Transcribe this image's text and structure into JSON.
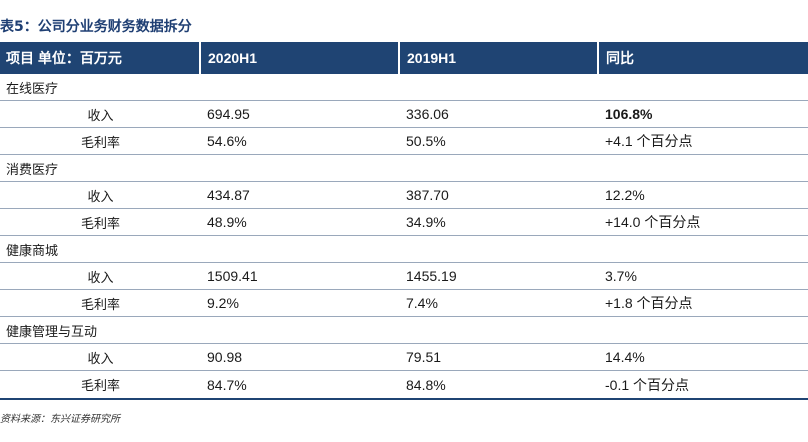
{
  "title": "表5：公司分业务财务数据拆分",
  "header": {
    "col0": "项目 单位：百万元",
    "col1": "2020H1",
    "col2": "2019H1",
    "col3": "同比"
  },
  "groups": [
    {
      "name": "在线医疗",
      "rows": [
        {
          "label": "收入",
          "v2020": "694.95",
          "v2019": "336.06",
          "yoy": "106.8%"
        },
        {
          "label": "毛利率",
          "v2020": "54.6%",
          "v2019": "50.5%",
          "yoy": "+4.1 个百分点"
        }
      ]
    },
    {
      "name": "消费医疗",
      "rows": [
        {
          "label": "收入",
          "v2020": "434.87",
          "v2019": "387.70",
          "yoy": "12.2%"
        },
        {
          "label": "毛利率",
          "v2020": "48.9%",
          "v2019": "34.9%",
          "yoy": "+14.0 个百分点"
        }
      ]
    },
    {
      "name": "健康商城",
      "rows": [
        {
          "label": "收入",
          "v2020": "1509.41",
          "v2019": "1455.19",
          "yoy": "3.7%"
        },
        {
          "label": "毛利率",
          "v2020": "9.2%",
          "v2019": "7.4%",
          "yoy": "+1.8 个百分点"
        }
      ]
    },
    {
      "name": "健康管理与互动",
      "rows": [
        {
          "label": "收入",
          "v2020": "90.98",
          "v2019": "79.51",
          "yoy": "14.4%"
        },
        {
          "label": "毛利率",
          "v2020": "84.7%",
          "v2019": "84.8%",
          "yoy": "-0.1 个百分点"
        }
      ]
    }
  ],
  "source": "资料来源：东兴证券研究所",
  "colors": {
    "header_bg": "#1f4473",
    "title": "#1f3f73"
  }
}
